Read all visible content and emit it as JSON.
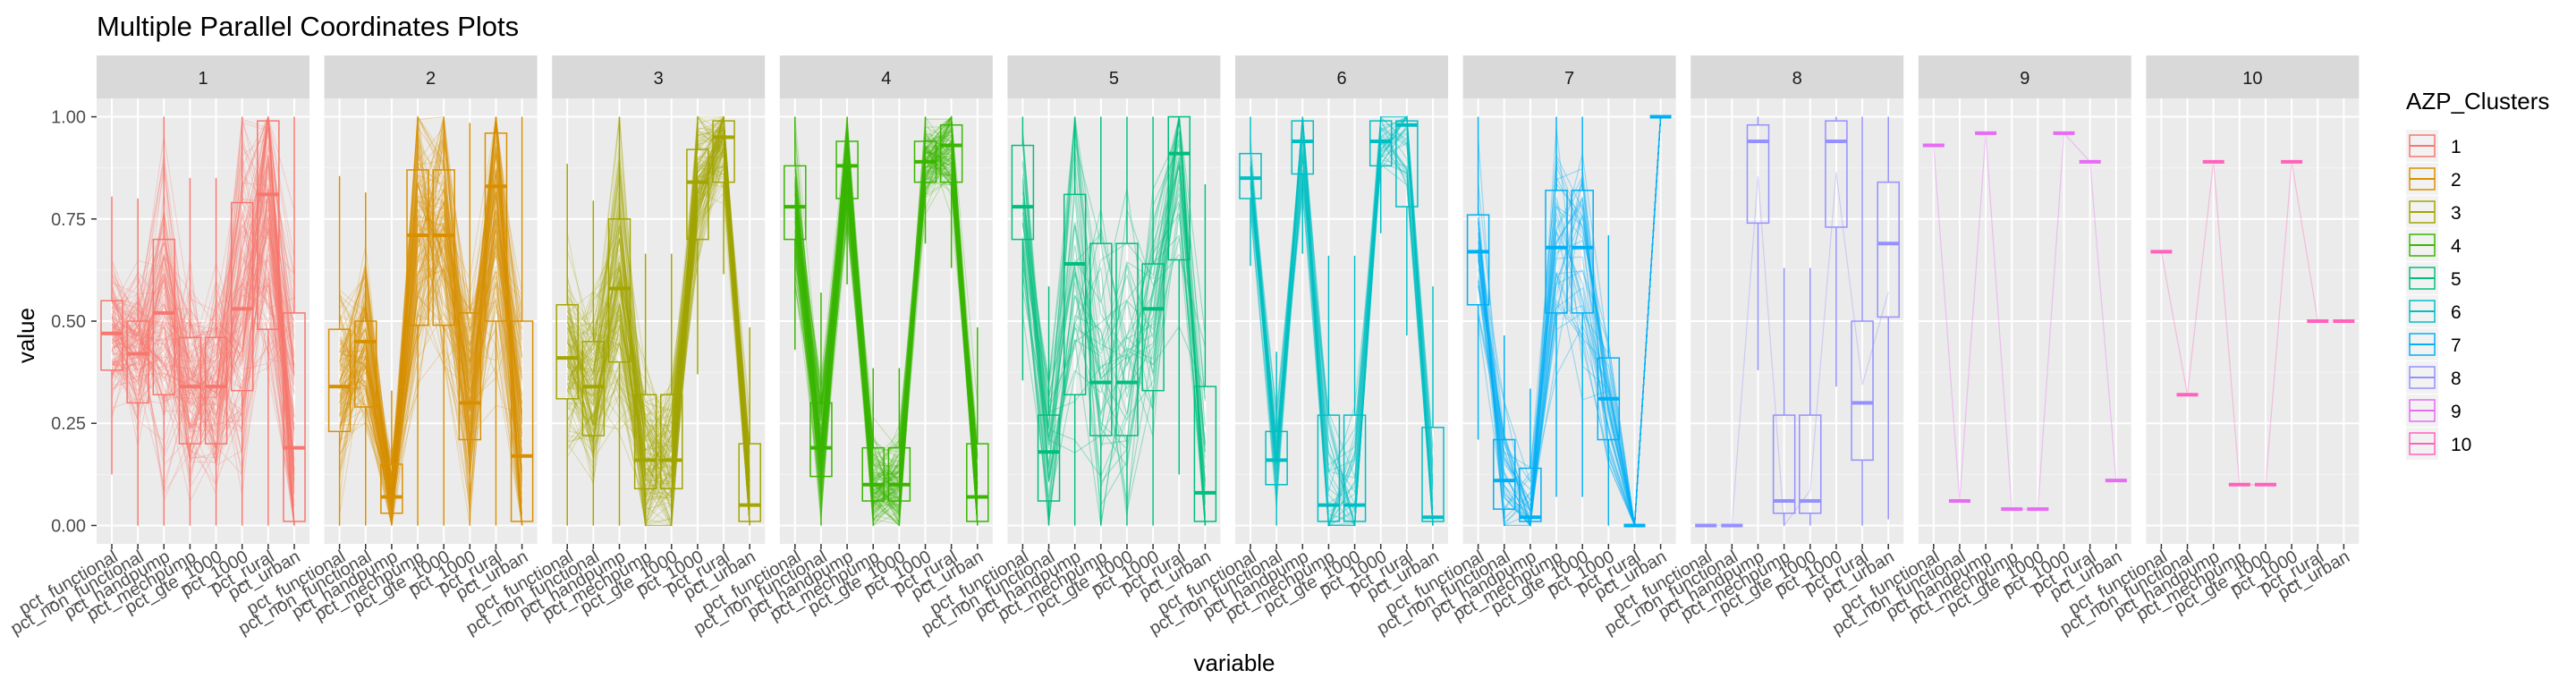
{
  "chart_data": {
    "type": "parallel_coordinates",
    "title": "Multiple Parallel Coordinates Plots",
    "xlabel": "variable",
    "ylabel": "value",
    "ylim": [
      0,
      1
    ],
    "y_ticks": [
      "0.00",
      "0.25",
      "0.50",
      "0.75",
      "1.00"
    ],
    "variables": [
      "pct_functional",
      "pct_non_functional",
      "pct_handpump",
      "pct_mechpump",
      "pct_gte_1000",
      "pct_1000",
      "pct_rural",
      "pct_urban"
    ],
    "legend_title": "AZP_Clusters",
    "legend_position": "right",
    "grid": true,
    "facets": [
      {
        "label": "1",
        "color": "#F8766D",
        "median": [
          0.47,
          0.42,
          0.52,
          0.34,
          0.34,
          0.53,
          0.81,
          0.19
        ],
        "q1": [
          0.38,
          0.3,
          0.32,
          0.2,
          0.2,
          0.33,
          0.48,
          0.01
        ],
        "q3": [
          0.55,
          0.5,
          0.7,
          0.46,
          0.46,
          0.79,
          0.99,
          0.52
        ],
        "dense": true
      },
      {
        "label": "2",
        "color": "#D89000",
        "median": [
          0.34,
          0.45,
          0.07,
          0.71,
          0.71,
          0.3,
          0.83,
          0.17
        ],
        "q1": [
          0.23,
          0.29,
          0.03,
          0.49,
          0.49,
          0.21,
          0.5,
          0.01
        ],
        "q3": [
          0.48,
          0.5,
          0.15,
          0.87,
          0.87,
          0.52,
          0.96,
          0.5
        ],
        "dense": true
      },
      {
        "label": "3",
        "color": "#A3A500",
        "median": [
          0.41,
          0.34,
          0.58,
          0.16,
          0.16,
          0.84,
          0.95,
          0.05
        ],
        "q1": [
          0.31,
          0.22,
          0.4,
          0.09,
          0.09,
          0.7,
          0.84,
          0.01
        ],
        "q3": [
          0.54,
          0.45,
          0.75,
          0.32,
          0.32,
          0.92,
          0.99,
          0.2
        ],
        "dense": true
      },
      {
        "label": "4",
        "color": "#39B600",
        "median": [
          0.78,
          0.19,
          0.88,
          0.1,
          0.1,
          0.89,
          0.93,
          0.07
        ],
        "q1": [
          0.7,
          0.12,
          0.8,
          0.06,
          0.06,
          0.84,
          0.84,
          0.01
        ],
        "q3": [
          0.88,
          0.3,
          0.94,
          0.19,
          0.19,
          0.94,
          0.98,
          0.2
        ],
        "dense": true
      },
      {
        "label": "5",
        "color": "#00BF7D",
        "median": [
          0.78,
          0.18,
          0.64,
          0.35,
          0.35,
          0.53,
          0.91,
          0.08
        ],
        "q1": [
          0.7,
          0.06,
          0.32,
          0.22,
          0.22,
          0.33,
          0.65,
          0.01
        ],
        "q3": [
          0.93,
          0.27,
          0.81,
          0.69,
          0.69,
          0.64,
          1.0,
          0.34
        ],
        "dense": false
      },
      {
        "label": "6",
        "color": "#00BFC4",
        "median": [
          0.85,
          0.16,
          0.94,
          0.05,
          0.05,
          0.94,
          0.98,
          0.02
        ],
        "q1": [
          0.8,
          0.1,
          0.86,
          0.01,
          0.01,
          0.88,
          0.78,
          0.01
        ],
        "q3": [
          0.91,
          0.23,
          0.99,
          0.27,
          0.27,
          0.99,
          0.99,
          0.24
        ],
        "dense": false
      },
      {
        "label": "7",
        "color": "#00B0F6",
        "median": [
          0.67,
          0.11,
          0.02,
          0.68,
          0.68,
          0.31,
          0.0,
          1.0
        ],
        "q1": [
          0.54,
          0.04,
          0.01,
          0.52,
          0.52,
          0.21,
          0.0,
          1.0
        ],
        "q3": [
          0.76,
          0.21,
          0.14,
          0.82,
          0.82,
          0.41,
          0.0,
          1.0
        ],
        "dense": false
      },
      {
        "label": "8",
        "color": "#9590FF",
        "median": [
          0.0,
          0.0,
          0.94,
          0.06,
          0.06,
          0.94,
          0.3,
          0.69
        ],
        "q1": [
          0.0,
          0.0,
          0.74,
          0.03,
          0.03,
          0.73,
          0.16,
          0.51
        ],
        "q3": [
          0.0,
          0.0,
          0.98,
          0.27,
          0.27,
          0.99,
          0.5,
          0.84
        ],
        "dense": false
      },
      {
        "label": "9",
        "color": "#E76BF3",
        "median": [
          0.93,
          0.06,
          0.96,
          0.04,
          0.04,
          0.96,
          0.89,
          0.11
        ],
        "q1": [
          0.93,
          0.06,
          0.96,
          0.04,
          0.04,
          0.96,
          0.89,
          0.11
        ],
        "q3": [
          0.93,
          0.06,
          0.96,
          0.04,
          0.04,
          0.96,
          0.89,
          0.11
        ],
        "dense": false
      },
      {
        "label": "10",
        "color": "#FF62BC",
        "median": [
          0.67,
          0.32,
          0.89,
          0.1,
          0.1,
          0.89,
          0.5,
          0.5
        ],
        "q1": [
          0.67,
          0.32,
          0.89,
          0.1,
          0.1,
          0.89,
          0.5,
          0.5
        ],
        "q3": [
          0.67,
          0.32,
          0.89,
          0.1,
          0.1,
          0.89,
          0.5,
          0.5
        ],
        "dense": false
      }
    ]
  }
}
